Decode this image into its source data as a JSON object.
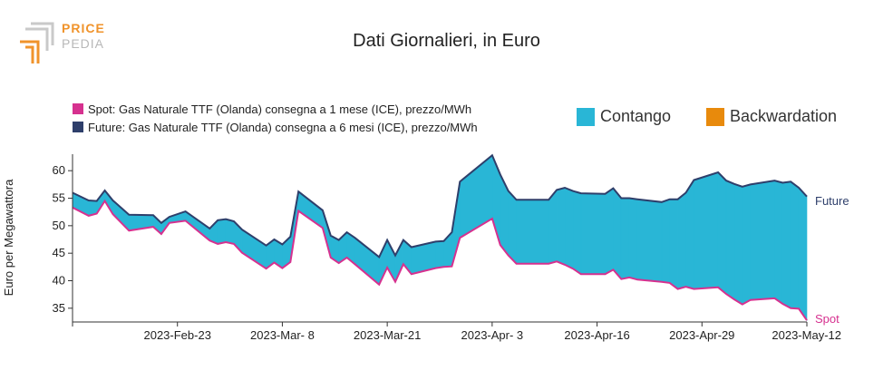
{
  "logo": {
    "word1": "PRICE",
    "word2": "PEDIA"
  },
  "chart_data": {
    "type": "area",
    "title": "Dati Giornalieri, in Euro",
    "ylabel": "Euro per Megawattora",
    "xlabel": "",
    "ylim": [
      32.5,
      63
    ],
    "y_ticks": [
      35,
      40,
      45,
      50,
      55,
      60
    ],
    "x_tick_labels": [
      "2023-Feb-23",
      "2023-Mar- 8",
      "2023-Mar-21",
      "2023-Apr- 3",
      "2023-Apr-16",
      "2023-Apr-29",
      "2023-May-12"
    ],
    "x_range": [
      "2023-Feb-10",
      "2023-May-12"
    ],
    "grid": false,
    "legend": [
      {
        "name": "Spot: Gas Naturale TTF (Olanda) consegna a 1 mese (ICE), prezzo/MWh",
        "color": "#d6318f"
      },
      {
        "name": "Future: Gas Naturale TTF (Olanda) consegna a 6 mesi (ICE), prezzo/MWh",
        "color": "#2e3f6b"
      }
    ],
    "fill_legend": [
      {
        "name": "Contango",
        "color": "#29b6d6"
      },
      {
        "name": "Backwardation",
        "color": "#e88a0c"
      }
    ],
    "end_labels": {
      "future": "Future",
      "spot": "Spot"
    },
    "x": [
      "2023-02-10",
      "2023-02-12",
      "2023-02-13",
      "2023-02-14",
      "2023-02-15",
      "2023-02-17",
      "2023-02-20",
      "2023-02-21",
      "2023-02-22",
      "2023-02-24",
      "2023-02-27",
      "2023-02-28",
      "2023-03-01",
      "2023-03-02",
      "2023-03-03",
      "2023-03-06",
      "2023-03-07",
      "2023-03-08",
      "2023-03-09",
      "2023-03-10",
      "2023-03-13",
      "2023-03-14",
      "2023-03-15",
      "2023-03-16",
      "2023-03-17",
      "2023-03-20",
      "2023-03-21",
      "2023-03-22",
      "2023-03-23",
      "2023-03-24",
      "2023-03-27",
      "2023-03-28",
      "2023-03-29",
      "2023-03-30",
      "2023-04-03",
      "2023-04-04",
      "2023-04-05",
      "2023-04-06",
      "2023-04-10",
      "2023-04-11",
      "2023-04-12",
      "2023-04-13",
      "2023-04-14",
      "2023-04-17",
      "2023-04-18",
      "2023-04-19",
      "2023-04-20",
      "2023-04-21",
      "2023-04-24",
      "2023-04-25",
      "2023-04-26",
      "2023-04-27",
      "2023-04-28",
      "2023-05-01",
      "2023-05-02",
      "2023-05-03",
      "2023-05-04",
      "2023-05-05",
      "2023-05-08",
      "2023-05-09",
      "2023-05-10",
      "2023-05-11",
      "2023-05-12"
    ],
    "series": [
      {
        "name": "Future",
        "color": "#2e3f6b",
        "values": [
          56.0,
          54.6,
          54.5,
          56.4,
          54.6,
          52.0,
          51.9,
          50.5,
          51.6,
          52.6,
          49.5,
          51.0,
          51.2,
          50.8,
          49.3,
          46.4,
          47.5,
          46.6,
          48.0,
          56.2,
          52.8,
          48.2,
          47.4,
          48.8,
          47.8,
          44.3,
          47.4,
          44.6,
          47.4,
          46.1,
          47.1,
          47.2,
          48.8,
          58.0,
          62.8,
          59.3,
          56.3,
          54.7,
          54.7,
          56.5,
          56.9,
          56.3,
          55.9,
          55.8,
          56.8,
          55.0,
          55.0,
          54.8,
          54.3,
          54.8,
          54.8,
          56.0,
          58.3,
          59.7,
          58.2,
          57.6,
          57.1,
          57.5,
          58.2,
          57.8,
          58.0,
          56.9,
          55.3
        ]
      },
      {
        "name": "Spot",
        "color": "#d6318f",
        "values": [
          53.3,
          51.8,
          52.2,
          54.5,
          52.1,
          49.1,
          49.8,
          48.5,
          50.5,
          50.9,
          47.3,
          46.7,
          47.0,
          46.7,
          45.1,
          42.2,
          43.3,
          42.3,
          43.4,
          52.7,
          49.6,
          44.2,
          43.2,
          44.2,
          43.0,
          39.3,
          42.4,
          39.8,
          43.0,
          41.2,
          42.3,
          42.5,
          42.6,
          47.8,
          51.3,
          46.5,
          44.6,
          43.1,
          43.1,
          43.5,
          42.9,
          42.2,
          41.2,
          41.2,
          42.0,
          40.3,
          40.6,
          40.2,
          39.8,
          39.6,
          38.5,
          38.9,
          38.5,
          38.8,
          37.6,
          36.6,
          35.7,
          36.5,
          36.8,
          35.8,
          35.0,
          34.9,
          32.8
        ]
      }
    ]
  }
}
